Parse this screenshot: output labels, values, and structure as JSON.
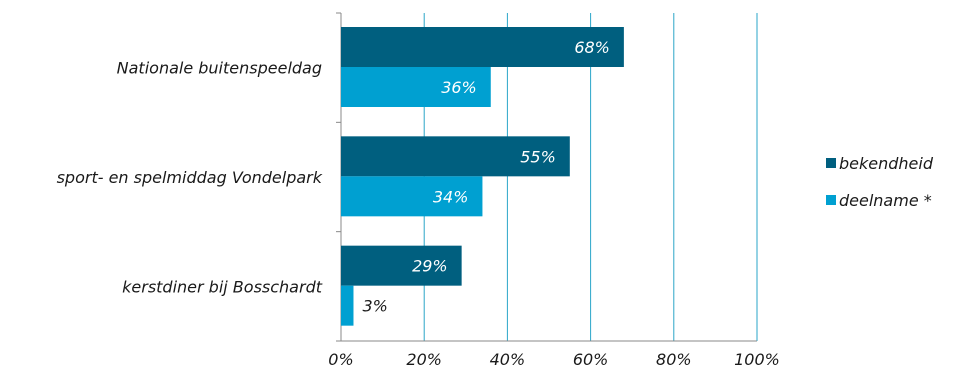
{
  "chart_data": {
    "type": "bar",
    "orientation": "horizontal",
    "categories": [
      "Nationale buitenspeeldag",
      "sport- en spelmiddag Vondelpark",
      "kerstdiner bij Bosschardt"
    ],
    "series": [
      {
        "name": "bekendheid",
        "values": [
          68,
          55,
          29
        ],
        "labels": [
          "68%",
          "55%",
          "29%"
        ],
        "color": "#005F7F"
      },
      {
        "name": "deelname *",
        "values": [
          36,
          34,
          3
        ],
        "labels": [
          "36%",
          "34%",
          "3%"
        ],
        "color": "#00A0D1"
      }
    ],
    "xlim": [
      0,
      100
    ],
    "ticks": [
      0,
      20,
      40,
      60,
      80,
      100
    ],
    "tick_labels": [
      "0%",
      "20%",
      "40%",
      "60%",
      "80%",
      "100%"
    ],
    "grid": "vertical",
    "grid_color": "#2AA6C8",
    "legend_position": "right",
    "title": "",
    "xlabel": "",
    "ylabel": ""
  }
}
